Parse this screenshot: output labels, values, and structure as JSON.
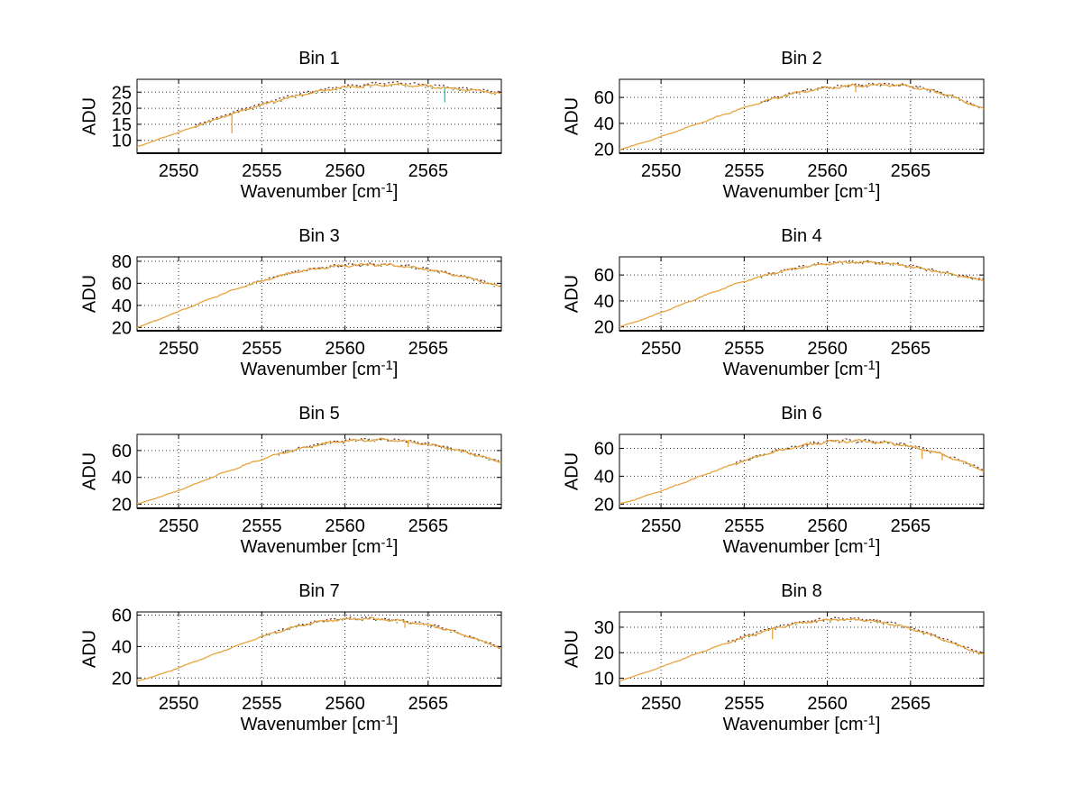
{
  "figure": {
    "background": "#ffffff"
  },
  "chart_data": [
    {
      "type": "line",
      "title": "Bin 1",
      "ylabel": "ADU",
      "xlabel_main": "Wavenumber [cm",
      "xlabel_sup": "-1",
      "xlabel_close": "]",
      "xlim": [
        2547.5,
        2569.4
      ],
      "ylim": [
        6,
        29
      ],
      "xticks": [
        2550,
        2555,
        2560,
        2565
      ],
      "yticks": [
        10,
        15,
        20,
        25
      ],
      "grid": true,
      "legend": "none",
      "x": [
        2547.5,
        2548.5,
        2549.5,
        2550.5,
        2551.5,
        2552.5,
        2553.5,
        2554.5,
        2555.5,
        2556.5,
        2557.5,
        2558.5,
        2559.5,
        2560.5,
        2561.5,
        2562.5,
        2563.5,
        2564.5,
        2565.5,
        2566.5,
        2567.5,
        2568.5,
        2569.5
      ],
      "values": [
        8,
        9.8,
        11.6,
        13.4,
        15.2,
        17,
        18.7,
        20.3,
        21.8,
        23.1,
        24.3,
        25.3,
        26.1,
        26.7,
        27.1,
        27.4,
        27.3,
        27,
        26.6,
        26.1,
        25.6,
        25.1,
        24.6
      ],
      "noise": 0.3,
      "overlay_from": 2551,
      "line_color": "#e8a33c",
      "overlay_color": "#5a1a1a",
      "overlay2_color": "#1a6b1a",
      "marks": [
        {
          "x": 2553.2,
          "dy": -6,
          "color": "#e8a33c"
        },
        {
          "x": 2566.0,
          "dy": -4.5,
          "color": "#00cccc"
        }
      ]
    },
    {
      "type": "line",
      "title": "Bin 2",
      "ylabel": "ADU",
      "xlabel_main": "Wavenumber [cm",
      "xlabel_sup": "-1",
      "xlabel_close": "]",
      "xlim": [
        2547.5,
        2569.4
      ],
      "ylim": [
        17,
        74
      ],
      "xticks": [
        2550,
        2555,
        2560,
        2565
      ],
      "yticks": [
        20,
        40,
        60
      ],
      "grid": true,
      "legend": "none",
      "x": [
        2547.5,
        2548.5,
        2549.5,
        2550.5,
        2551.5,
        2552.5,
        2553.5,
        2554.5,
        2555.5,
        2556.5,
        2557.5,
        2558.5,
        2559.5,
        2560.5,
        2561.5,
        2562.5,
        2563.5,
        2564.5,
        2565.5,
        2566.5,
        2567.5,
        2568.5,
        2569.5
      ],
      "values": [
        20,
        23.5,
        27.5,
        32,
        36.5,
        41,
        45.5,
        50,
        54,
        58,
        61.5,
        64.5,
        66.5,
        68,
        69,
        69.5,
        70,
        69.3,
        67.5,
        64.5,
        60.5,
        55.5,
        50.5
      ],
      "noise": 0.8,
      "overlay_from": 2556,
      "line_color": "#e8a33c",
      "overlay_color": "#5a1a1a",
      "overlay2_color": "#1a6b1a",
      "marks": [
        {
          "x": 2561.7,
          "dy": -5,
          "color": "#e8a33c"
        }
      ]
    },
    {
      "type": "line",
      "title": "Bin 3",
      "ylabel": "ADU",
      "xlabel_main": "Wavenumber [cm",
      "xlabel_sup": "-1",
      "xlabel_close": "]",
      "xlim": [
        2547.5,
        2569.4
      ],
      "ylim": [
        17,
        84
      ],
      "xticks": [
        2550,
        2555,
        2560,
        2565
      ],
      "yticks": [
        20,
        40,
        60,
        80
      ],
      "grid": true,
      "legend": "none",
      "x": [
        2547.5,
        2548.5,
        2549.5,
        2550.5,
        2551.5,
        2552.5,
        2553.5,
        2554.5,
        2555.5,
        2556.5,
        2557.5,
        2558.5,
        2559.5,
        2560.5,
        2561.5,
        2562.5,
        2563.5,
        2564.5,
        2565.5,
        2566.5,
        2567.5,
        2568.5,
        2569.5
      ],
      "values": [
        20,
        25.5,
        31.5,
        37.5,
        43.5,
        49.5,
        55,
        60,
        64.5,
        68.5,
        71.5,
        74,
        75.5,
        76.5,
        77,
        76.5,
        75.5,
        73.5,
        71,
        68,
        64.5,
        60.5,
        56
      ],
      "noise": 0.9,
      "overlay_from": 2554,
      "line_color": "#e8a33c",
      "overlay_color": "#5a1a1a",
      "overlay2_color": "#1a6b1a",
      "marks": []
    },
    {
      "type": "line",
      "title": "Bin 4",
      "ylabel": "ADU",
      "xlabel_main": "Wavenumber [cm",
      "xlabel_sup": "-1",
      "xlabel_close": "]",
      "xlim": [
        2547.5,
        2569.4
      ],
      "ylim": [
        17,
        74
      ],
      "xticks": [
        2550,
        2555,
        2560,
        2565
      ],
      "yticks": [
        20,
        40,
        60
      ],
      "grid": true,
      "legend": "none",
      "x": [
        2547.5,
        2548.5,
        2549.5,
        2550.5,
        2551.5,
        2552.5,
        2553.5,
        2554.5,
        2555.5,
        2556.5,
        2557.5,
        2558.5,
        2559.5,
        2560.5,
        2561.5,
        2562.5,
        2563.5,
        2564.5,
        2565.5,
        2566.5,
        2567.5,
        2568.5,
        2569.5
      ],
      "values": [
        20,
        24,
        28.5,
        33.5,
        38.5,
        43.5,
        48.5,
        53,
        57,
        60.5,
        63.5,
        66,
        68,
        69.3,
        70,
        69.8,
        69,
        67.5,
        65.5,
        63,
        60.5,
        58,
        55.5
      ],
      "noise": 0.7,
      "overlay_from": 2556,
      "line_color": "#e8a33c",
      "overlay_color": "#5a1a1a",
      "overlay2_color": "#1a6b1a",
      "marks": []
    },
    {
      "type": "line",
      "title": "Bin 5",
      "ylabel": "ADU",
      "xlabel_main": "Wavenumber [cm",
      "xlabel_sup": "-1",
      "xlabel_close": "]",
      "xlim": [
        2547.5,
        2569.4
      ],
      "ylim": [
        17,
        72
      ],
      "xticks": [
        2550,
        2555,
        2560,
        2565
      ],
      "yticks": [
        20,
        40,
        60
      ],
      "grid": true,
      "legend": "none",
      "x": [
        2547.5,
        2548.5,
        2549.5,
        2550.5,
        2551.5,
        2552.5,
        2553.5,
        2554.5,
        2555.5,
        2556.5,
        2557.5,
        2558.5,
        2559.5,
        2560.5,
        2561.5,
        2562.5,
        2563.5,
        2564.5,
        2565.5,
        2566.5,
        2567.5,
        2568.5,
        2569.5
      ],
      "values": [
        20,
        24,
        28,
        32.5,
        37.5,
        42.5,
        47,
        51.5,
        55.5,
        59,
        62,
        64.5,
        66.3,
        67.5,
        68,
        67.8,
        67,
        65.5,
        63.5,
        61,
        58,
        54.5,
        50.5
      ],
      "noise": 0.7,
      "overlay_from": 2556,
      "line_color": "#e8a33c",
      "overlay_color": "#5a1a1a",
      "overlay2_color": "#1a6b1a",
      "marks": [
        {
          "x": 2563.8,
          "dy": -4,
          "color": "#e8a33c"
        }
      ]
    },
    {
      "type": "line",
      "title": "Bin 6",
      "ylabel": "ADU",
      "xlabel_main": "Wavenumber [cm",
      "xlabel_sup": "-1",
      "xlabel_close": "]",
      "xlim": [
        2547.5,
        2569.4
      ],
      "ylim": [
        17,
        70
      ],
      "xticks": [
        2550,
        2555,
        2560,
        2565
      ],
      "yticks": [
        20,
        40,
        60
      ],
      "grid": true,
      "legend": "none",
      "x": [
        2547.5,
        2548.5,
        2549.5,
        2550.5,
        2551.5,
        2552.5,
        2553.5,
        2554.5,
        2555.5,
        2556.5,
        2557.5,
        2558.5,
        2559.5,
        2560.5,
        2561.5,
        2562.5,
        2563.5,
        2564.5,
        2565.5,
        2566.5,
        2567.5,
        2568.5,
        2569.5
      ],
      "values": [
        20,
        23.5,
        27.5,
        31.5,
        36,
        40.5,
        45,
        49,
        53,
        56.5,
        59.5,
        62,
        63.8,
        65,
        65.3,
        65,
        64,
        62.5,
        60,
        57,
        53,
        48.5,
        43.5
      ],
      "noise": 0.8,
      "overlay_from": 2554.5,
      "line_color": "#e8a33c",
      "overlay_color": "#5a1a1a",
      "overlay2_color": "#1a6b1a",
      "marks": [
        {
          "x": 2565.7,
          "dy": -7,
          "color": "#e8a33c"
        },
        {
          "x": 2566.9,
          "dy": -4,
          "color": "#e8a33c"
        }
      ]
    },
    {
      "type": "line",
      "title": "Bin 7",
      "ylabel": "ADU",
      "xlabel_main": "Wavenumber [cm",
      "xlabel_sup": "-1",
      "xlabel_close": "]",
      "xlim": [
        2547.5,
        2569.4
      ],
      "ylim": [
        15,
        62
      ],
      "xticks": [
        2550,
        2555,
        2560,
        2565
      ],
      "yticks": [
        20,
        40,
        60
      ],
      "grid": true,
      "legend": "none",
      "x": [
        2547.5,
        2548.5,
        2549.5,
        2550.5,
        2551.5,
        2552.5,
        2553.5,
        2554.5,
        2555.5,
        2556.5,
        2557.5,
        2558.5,
        2559.5,
        2560.5,
        2561.5,
        2562.5,
        2563.5,
        2564.5,
        2565.5,
        2566.5,
        2567.5,
        2568.5,
        2569.5
      ],
      "values": [
        18,
        21,
        24.5,
        28.5,
        32.5,
        36.5,
        40.5,
        44.5,
        48,
        51,
        53.8,
        55.8,
        57,
        57.6,
        57.6,
        57,
        56,
        54.5,
        52.5,
        49.5,
        46,
        42.5,
        38.5
      ],
      "noise": 0.55,
      "overlay_from": 2555,
      "line_color": "#e8a33c",
      "overlay_color": "#5a1a1a",
      "overlay2_color": "#1a6b1a",
      "marks": [
        {
          "x": 2563.6,
          "dy": -4,
          "color": "#e8a33c"
        }
      ]
    },
    {
      "type": "line",
      "title": "Bin 8",
      "ylabel": "ADU",
      "xlabel_main": "Wavenumber [cm",
      "xlabel_sup": "-1",
      "xlabel_close": "]",
      "xlim": [
        2547.5,
        2569.4
      ],
      "ylim": [
        7,
        36
      ],
      "xticks": [
        2550,
        2555,
        2560,
        2565
      ],
      "yticks": [
        10,
        20,
        30
      ],
      "grid": true,
      "legend": "none",
      "x": [
        2547.5,
        2548.5,
        2549.5,
        2550.5,
        2551.5,
        2552.5,
        2553.5,
        2554.5,
        2555.5,
        2556.5,
        2557.5,
        2558.5,
        2559.5,
        2560.5,
        2561.5,
        2562.5,
        2563.5,
        2564.5,
        2565.5,
        2566.5,
        2567.5,
        2568.5,
        2569.5
      ],
      "values": [
        9,
        11,
        13.2,
        15.6,
        18,
        20.4,
        22.7,
        25,
        27,
        29,
        30.6,
        31.8,
        32.6,
        33,
        33,
        32.6,
        31.7,
        30.3,
        28.5,
        26.3,
        23.8,
        21.3,
        19.2
      ],
      "noise": 0.35,
      "overlay_from": 2554,
      "line_color": "#e8a33c",
      "overlay_color": "#5a1a1a",
      "overlay2_color": "#1a6b1a",
      "marks": [
        {
          "x": 2556.7,
          "dy": -4,
          "color": "#e8a33c"
        }
      ]
    }
  ]
}
